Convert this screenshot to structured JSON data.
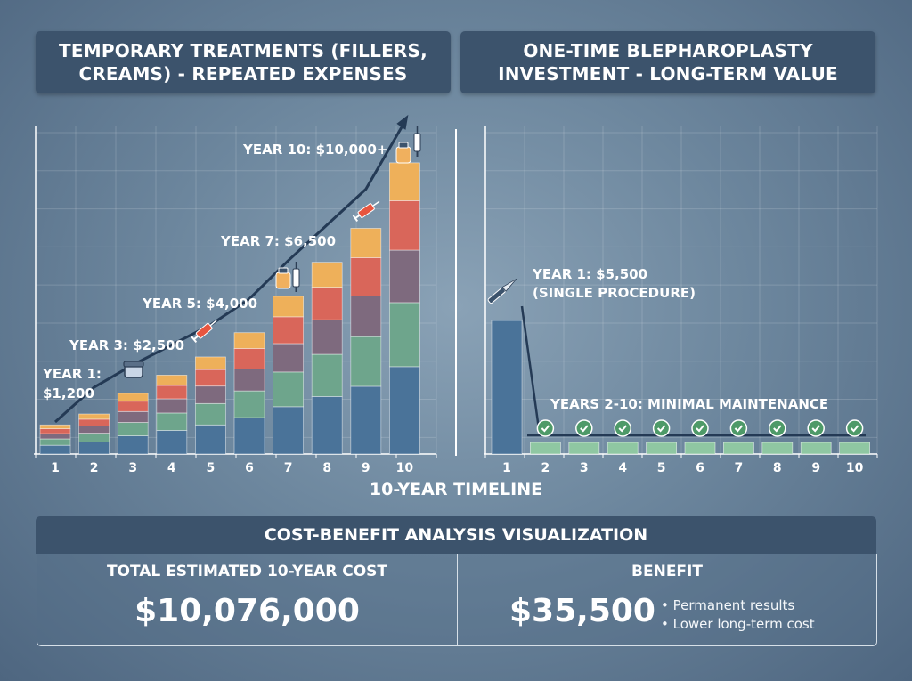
{
  "titles": {
    "left": "TEMPORARY TREATMENTS (FILLERS,\nCREAMS) - REPEATED EXPENSES",
    "right": "ONE-TIME BLEPHAROPLASTY\nINVESTMENT - LONG-TERM VALUE"
  },
  "colors": {
    "segment_blue": "#4a7399",
    "segment_green": "#6ea58c",
    "segment_mauve": "#7e6a7e",
    "segment_red": "#d9665a",
    "segment_orange": "#eeb05a",
    "maintenance_green": "#8fc7a2",
    "trend_line": "#243a55"
  },
  "chart_data": [
    {
      "type": "bar",
      "name": "temporary-treatments",
      "categories": [
        "1",
        "2",
        "3",
        "4",
        "5",
        "6",
        "7",
        "8",
        "9",
        "10"
      ],
      "values": [
        1200,
        1650,
        2500,
        3250,
        4000,
        5000,
        6500,
        7900,
        9300,
        12000
      ],
      "stack_shares": [
        0.3,
        0.22,
        0.18,
        0.17,
        0.13
      ],
      "ylim": [
        0,
        13500
      ],
      "xlabel": "10-YEAR TIMELINE",
      "grid": true,
      "annotations": [
        {
          "text": "YEAR 1:\n$1,200",
          "x": "1"
        },
        {
          "text": "YEAR 3: $2,500",
          "x": "3"
        },
        {
          "text": "YEAR 5: $4,000",
          "x": "5"
        },
        {
          "text": "YEAR 7: $6,500",
          "x": "7"
        },
        {
          "text": "YEAR 10: $10,000+",
          "x": "10"
        }
      ]
    },
    {
      "type": "bar",
      "name": "blepharoplasty",
      "categories": [
        "1",
        "2",
        "3",
        "4",
        "5",
        "6",
        "7",
        "8",
        "9",
        "10"
      ],
      "values": [
        5500,
        420,
        420,
        420,
        420,
        420,
        420,
        420,
        420,
        420
      ],
      "ylim": [
        0,
        13500
      ],
      "grid": true,
      "annotations": [
        {
          "text": "YEAR 1: $5,500\n(SINGLE PROCEDURE)",
          "x": "1"
        },
        {
          "text": "YEARS 2-10: MINIMAL MAINTENANCE",
          "x": "2-10"
        }
      ]
    }
  ],
  "summary": {
    "header": "COST-BENEFIT ANALYSIS VISUALIZATION",
    "cost_label": "TOTAL ESTIMATED 10-YEAR COST",
    "cost_value": "$10,076,000",
    "benefit_label": "BENEFIT",
    "benefit_value": "$35,500",
    "benefit_points": [
      "Permanent results",
      "Lower long-term cost"
    ]
  }
}
